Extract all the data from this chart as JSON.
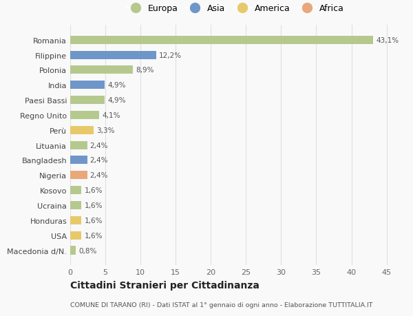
{
  "countries": [
    "Romania",
    "Filippine",
    "Polonia",
    "India",
    "Paesi Bassi",
    "Regno Unito",
    "Perù",
    "Lituania",
    "Bangladesh",
    "Nigeria",
    "Kosovo",
    "Ucraina",
    "Honduras",
    "USA",
    "Macedonia d/N."
  ],
  "values": [
    43.1,
    12.2,
    8.9,
    4.9,
    4.9,
    4.1,
    3.3,
    2.4,
    2.4,
    2.4,
    1.6,
    1.6,
    1.6,
    1.6,
    0.8
  ],
  "labels": [
    "43,1%",
    "12,2%",
    "8,9%",
    "4,9%",
    "4,9%",
    "4,1%",
    "3,3%",
    "2,4%",
    "2,4%",
    "2,4%",
    "1,6%",
    "1,6%",
    "1,6%",
    "1,6%",
    "0,8%"
  ],
  "continents": [
    "Europa",
    "Asia",
    "Europa",
    "Asia",
    "Europa",
    "Europa",
    "America",
    "Europa",
    "Asia",
    "Africa",
    "Europa",
    "Europa",
    "America",
    "America",
    "Europa"
  ],
  "continent_colors": {
    "Europa": "#b5c98e",
    "Asia": "#6f96c8",
    "America": "#e8c96a",
    "Africa": "#e8a87a"
  },
  "legend_order": [
    "Europa",
    "Asia",
    "America",
    "Africa"
  ],
  "xlim": [
    0,
    47
  ],
  "xticks": [
    0,
    5,
    10,
    15,
    20,
    25,
    30,
    35,
    40,
    45
  ],
  "title": "Cittadini Stranieri per Cittadinanza",
  "subtitle": "COMUNE DI TARANO (RI) - Dati ISTAT al 1° gennaio di ogni anno - Elaborazione TUTTITALIA.IT",
  "background_color": "#f9f9f9",
  "grid_color": "#e0e0e0",
  "bar_height": 0.55
}
